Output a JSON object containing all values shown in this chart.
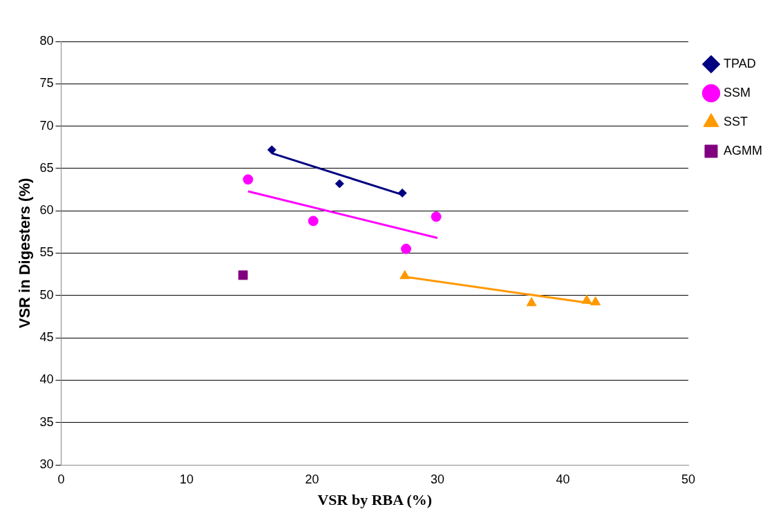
{
  "chart_data": {
    "type": "scatter",
    "xlabel": "VSR by RBA (%)",
    "ylabel": "VSR in Digesters (%)",
    "xlim": [
      0,
      50
    ],
    "xticks": [
      0,
      10,
      20,
      30,
      40,
      50
    ],
    "ylim": [
      30,
      80
    ],
    "yticks": [
      30,
      35,
      40,
      45,
      50,
      55,
      60,
      65,
      70,
      75,
      80
    ],
    "grid": "y",
    "legend": "top right",
    "series": [
      {
        "name": "TPAD",
        "color": "#000080",
        "marker": "diamond",
        "x": [
          16.8,
          22.2,
          27.2
        ],
        "values": [
          67.2,
          63.2,
          62.1
        ]
      },
      {
        "name": "SSM",
        "color": "#ff00ff",
        "marker": "circle",
        "x": [
          14.9,
          20.1,
          27.5,
          29.9
        ],
        "values": [
          63.7,
          58.8,
          55.5,
          59.3
        ]
      },
      {
        "name": "SST",
        "color": "#ff9900",
        "marker": "triangle",
        "x": [
          27.4,
          37.5,
          41.9,
          42.6
        ],
        "values": [
          52.3,
          49.1,
          49.4,
          49.2
        ]
      },
      {
        "name": "AGMM",
        "color": "#800080",
        "marker": "square",
        "x": [
          14.5
        ],
        "values": [
          52.4
        ]
      },
      {
        "type": "line",
        "color": "#000080",
        "marker": "none",
        "x": [
          16.8,
          27.2
        ],
        "values": [
          66.8,
          61.9
        ]
      },
      {
        "type": "line",
        "color": "#ff00ff",
        "marker": "none",
        "x": [
          14.9,
          30.0
        ],
        "values": [
          62.3,
          56.8
        ]
      },
      {
        "type": "line",
        "color": "#ff9900",
        "marker": "none",
        "x": [
          27.4,
          42.6
        ],
        "values": [
          52.2,
          49.0
        ]
      }
    ]
  }
}
